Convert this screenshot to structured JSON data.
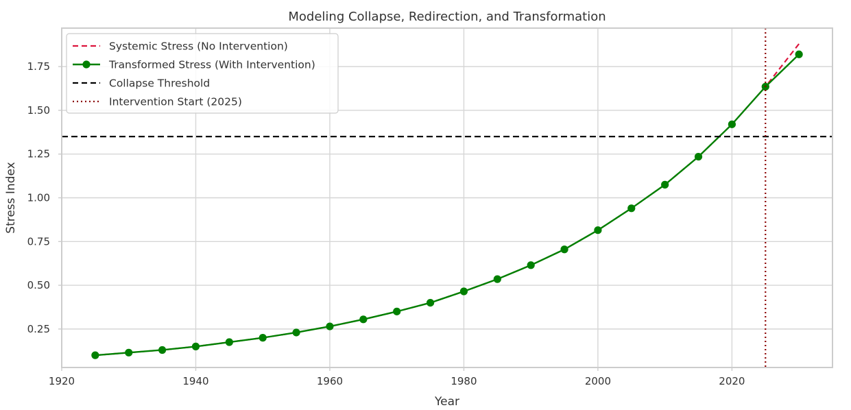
{
  "chart_data": {
    "type": "line",
    "title": "Modeling Collapse, Redirection, and Transformation",
    "xlabel": "Year",
    "ylabel": "Stress Index",
    "xlim": [
      1920,
      2035
    ],
    "ylim": [
      0.03,
      1.97
    ],
    "x_ticks": [
      1920,
      1940,
      1960,
      1980,
      2000,
      2020
    ],
    "y_ticks": [
      0.25,
      0.5,
      0.75,
      1.0,
      1.25,
      1.5,
      1.75
    ],
    "y_tick_labels": [
      "0.25",
      "0.50",
      "0.75",
      "1.00",
      "1.25",
      "1.50",
      "1.75"
    ],
    "grid": true,
    "legend_position": "upper-left",
    "x": [
      1925,
      1930,
      1935,
      1940,
      1945,
      1950,
      1955,
      1960,
      1965,
      1970,
      1975,
      1980,
      1985,
      1990,
      1995,
      2000,
      2005,
      2010,
      2015,
      2020,
      2025,
      2030
    ],
    "series": [
      {
        "name": "Systemic Stress (No Intervention)",
        "style": "dashed",
        "color": "#dc143c",
        "values": [
          0.1,
          0.115,
          0.13,
          0.15,
          0.175,
          0.2,
          0.23,
          0.265,
          0.305,
          0.35,
          0.4,
          0.465,
          0.535,
          0.615,
          0.705,
          0.815,
          0.94,
          1.075,
          1.235,
          1.42,
          1.635,
          1.88
        ]
      },
      {
        "name": "Transformed Stress (With Intervention)",
        "style": "solid-markers",
        "color": "#008000",
        "values": [
          0.1,
          0.115,
          0.13,
          0.15,
          0.175,
          0.2,
          0.23,
          0.265,
          0.305,
          0.35,
          0.4,
          0.465,
          0.535,
          0.615,
          0.705,
          0.815,
          0.94,
          1.075,
          1.235,
          1.42,
          1.635,
          1.82
        ]
      }
    ],
    "reference_lines": [
      {
        "name": "Collapse Threshold",
        "orientation": "horizontal",
        "value": 1.35,
        "style": "dashed",
        "color": "#000000"
      },
      {
        "name": "Intervention Start (2025)",
        "orientation": "vertical",
        "value": 2025,
        "style": "dotted",
        "color": "#8b0000"
      }
    ]
  }
}
